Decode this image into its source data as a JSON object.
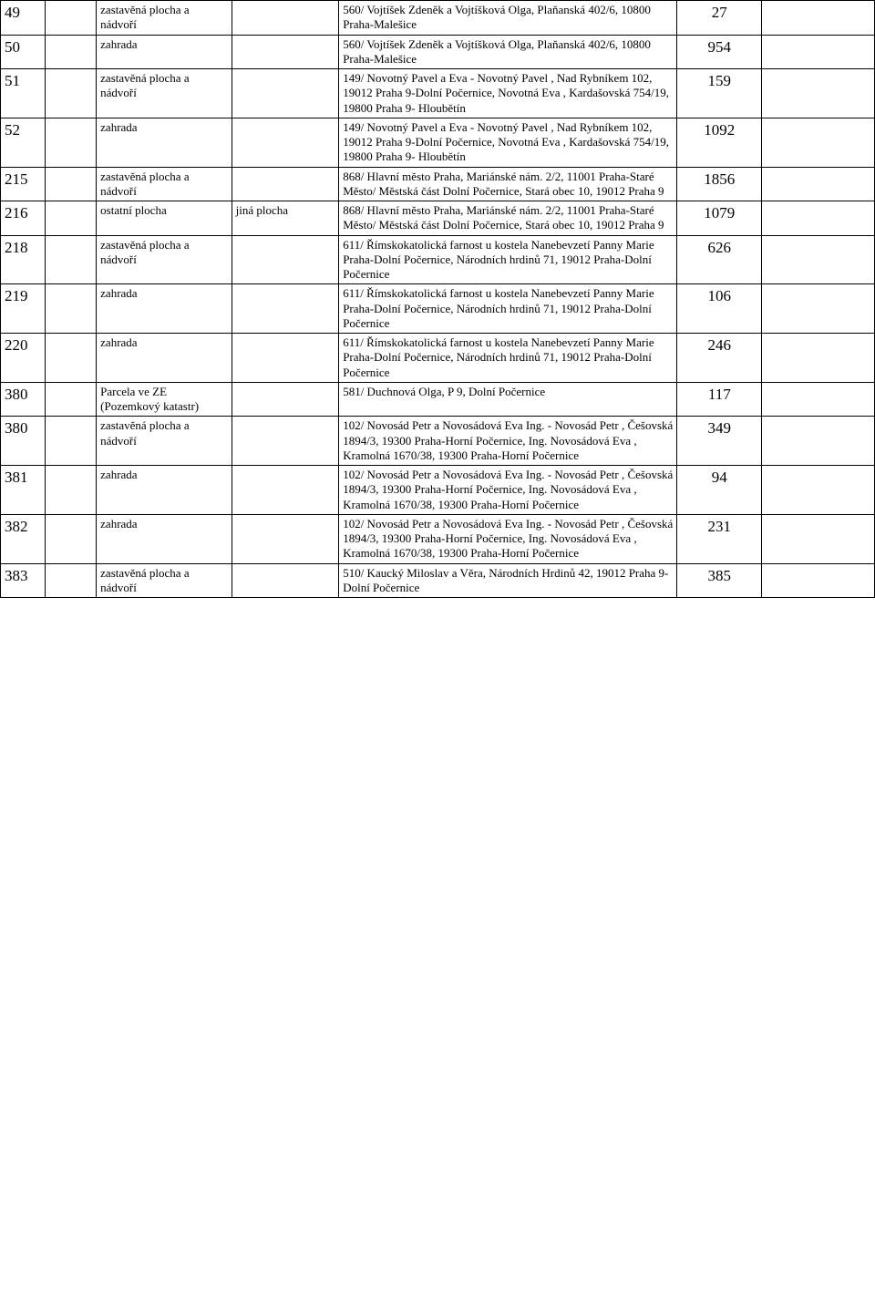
{
  "rows": [
    {
      "id": "49",
      "type": "zastavěná plocha a nádvoří",
      "sub": "",
      "owner": "560/ Vojtíšek Zdeněk a Vojtíšková Olga, Plaňanská 402/6, 10800 Praha-Malešice",
      "area": "27"
    },
    {
      "id": "50",
      "type": "zahrada",
      "sub": "",
      "owner": "560/ Vojtíšek Zdeněk a Vojtíšková Olga, Plaňanská 402/6, 10800 Praha-Malešice",
      "area": "954"
    },
    {
      "id": "51",
      "type": "zastavěná plocha a nádvoří",
      "sub": "",
      "owner": "149/ Novotný Pavel a Eva - Novotný Pavel , Nad Rybníkem 102, 19012 Praha 9-Dolní Počernice, Novotná Eva , Kardašovská 754/19, 19800 Praha 9- Hloubětín",
      "area": "159"
    },
    {
      "id": "52",
      "type": "zahrada",
      "sub": "",
      "owner": "149/ Novotný Pavel a Eva - Novotný Pavel , Nad Rybníkem 102, 19012 Praha 9-Dolní Počernice, Novotná Eva , Kardašovská 754/19, 19800 Praha 9- Hloubětín",
      "area": "1092"
    },
    {
      "id": "215",
      "type": "zastavěná plocha a nádvoří",
      "sub": "",
      "owner": "868/ Hlavní město Praha, Mariánské nám. 2/2, 11001 Praha-Staré Město/ Městská část Dolní Počernice, Stará obec 10, 19012 Praha 9",
      "area": "1856"
    },
    {
      "id": "216",
      "type": "ostatní plocha",
      "sub": "jiná plocha",
      "owner": "868/ Hlavní město Praha, Mariánské nám. 2/2, 11001 Praha-Staré Město/ Městská část Dolní Počernice, Stará obec 10, 19012 Praha 9",
      "area": "1079"
    },
    {
      "id": "218",
      "type": "zastavěná plocha a nádvoří",
      "sub": "",
      "owner": "611/ Římskokatolická farnost u kostela Nanebevzetí Panny Marie Praha-Dolní Počernice, Národních hrdinů 71, 19012 Praha-Dolní Počernice",
      "area": "626"
    },
    {
      "id": "219",
      "type": "zahrada",
      "sub": "",
      "owner": "611/ Římskokatolická farnost u kostela Nanebevzetí Panny Marie Praha-Dolní Počernice, Národních hrdinů 71, 19012 Praha-Dolní Počernice",
      "area": "106"
    },
    {
      "id": "220",
      "type": "zahrada",
      "sub": "",
      "owner": "611/ Římskokatolická farnost u kostela Nanebevzetí Panny Marie Praha-Dolní Počernice, Národních hrdinů 71, 19012 Praha-Dolní Počernice",
      "area": "246"
    },
    {
      "id": "380",
      "type": "Parcela ve ZE (Pozemkový katastr)",
      "sub": "",
      "owner": "581/ Duchnová Olga, P 9, Dolní Počernice",
      "area": "117"
    },
    {
      "id": "380",
      "type": "zastavěná plocha a nádvoří",
      "sub": "",
      "owner": "102/ Novosád Petr a Novosádová Eva Ing. - Novosád Petr , Češovská 1894/3, 19300 Praha-Horní Počernice, Ing. Novosádová Eva , Kramolná 1670/38, 19300 Praha-Horní Počernice",
      "area": "349"
    },
    {
      "id": "381",
      "type": "zahrada",
      "sub": "",
      "owner": "102/ Novosád Petr a Novosádová Eva Ing. - Novosád Petr , Češovská 1894/3, 19300 Praha-Horní Počernice, Ing. Novosádová Eva , Kramolná 1670/38, 19300 Praha-Horní Počernice",
      "area": "94"
    },
    {
      "id": "382",
      "type": "zahrada",
      "sub": "",
      "owner": "102/ Novosád Petr a Novosádová Eva Ing. - Novosád Petr , Češovská 1894/3, 19300 Praha-Horní Počernice, Ing. Novosádová Eva , Kramolná 1670/38, 19300 Praha-Horní Počernice",
      "area": "231"
    },
    {
      "id": "383",
      "type": "zastavěná plocha a nádvoří",
      "sub": "",
      "owner": "510/ Kaucký Miloslav a Věra, Národních Hrdinů 42, 19012 Praha 9-Dolní Počernice",
      "area": "385"
    }
  ]
}
